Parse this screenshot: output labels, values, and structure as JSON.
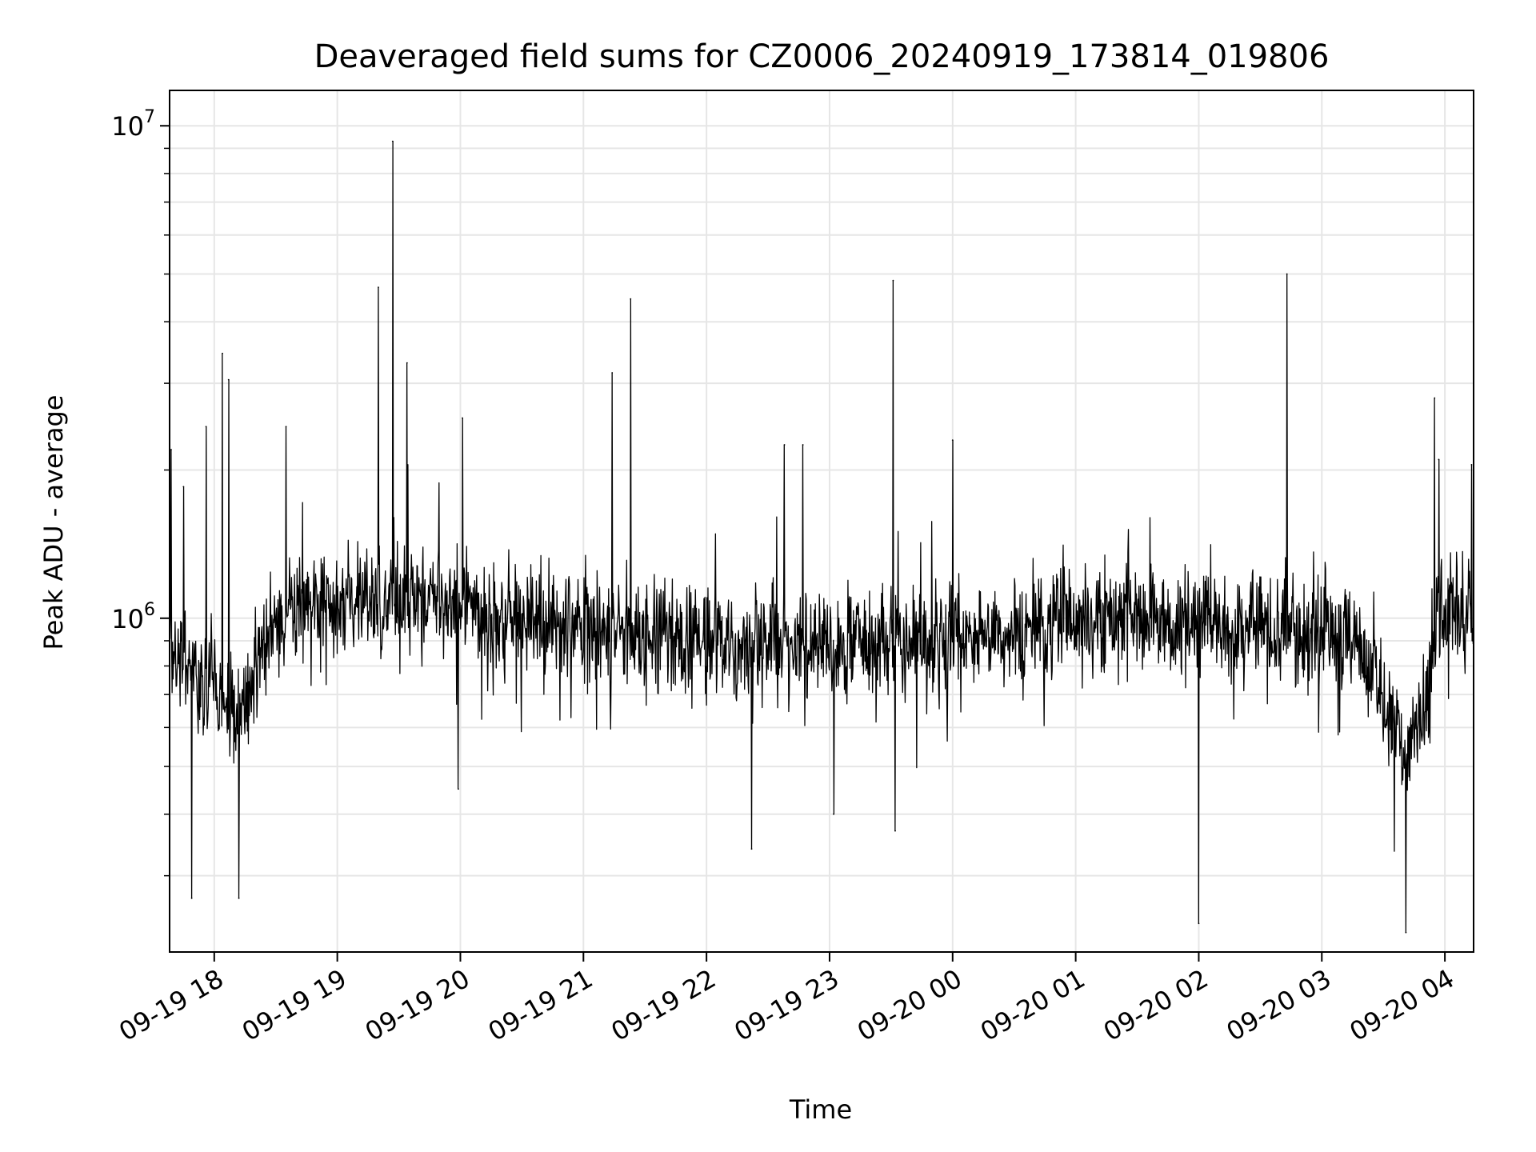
{
  "chart_data": {
    "type": "line",
    "title": "Deaveraged field sums for CZ0006_20240919_173814_019806",
    "xlabel": "Time",
    "ylabel": "Peak ADU - average",
    "yscale": "log",
    "ylim": [
      210000,
      11800000
    ],
    "xlim": [
      "2024-09-19 17:38:14",
      "2024-09-20 04:14:00"
    ],
    "grid": true,
    "line_color": "#000000",
    "grid_color": "#e6e6e6",
    "x_ticks": [
      {
        "t": "2024-09-19 18:00",
        "label": "09-19 18"
      },
      {
        "t": "2024-09-19 19:00",
        "label": "09-19 19"
      },
      {
        "t": "2024-09-19 20:00",
        "label": "09-19 20"
      },
      {
        "t": "2024-09-19 21:00",
        "label": "09-19 21"
      },
      {
        "t": "2024-09-19 22:00",
        "label": "09-19 22"
      },
      {
        "t": "2024-09-19 23:00",
        "label": "09-19 23"
      },
      {
        "t": "2024-09-20 00:00",
        "label": "09-20 00"
      },
      {
        "t": "2024-09-20 01:00",
        "label": "09-20 01"
      },
      {
        "t": "2024-09-20 02:00",
        "label": "09-20 02"
      },
      {
        "t": "2024-09-20 03:00",
        "label": "09-20 03"
      },
      {
        "t": "2024-09-20 04:00",
        "label": "09-20 04"
      }
    ],
    "y_major_ticks": [
      {
        "v": 1000000,
        "base": "10",
        "exp": "6"
      },
      {
        "v": 10000000,
        "base": "10",
        "exp": "7"
      }
    ],
    "y_minor_ticks": [
      300000,
      400000,
      500000,
      600000,
      700000,
      800000,
      900000,
      2000000,
      3000000,
      4000000,
      5000000,
      6000000,
      7000000,
      8000000,
      9000000
    ],
    "baseline": [
      {
        "t": "2024-09-19 17:38",
        "v": 880000
      },
      {
        "t": "2024-09-19 17:50",
        "v": 800000
      },
      {
        "t": "2024-09-19 18:00",
        "v": 700000
      },
      {
        "t": "2024-09-19 18:10",
        "v": 640000
      },
      {
        "t": "2024-09-19 18:18",
        "v": 700000
      },
      {
        "t": "2024-09-19 18:25",
        "v": 950000
      },
      {
        "t": "2024-09-19 18:40",
        "v": 1050000
      },
      {
        "t": "2024-09-19 19:00",
        "v": 1080000
      },
      {
        "t": "2024-09-19 19:30",
        "v": 1100000
      },
      {
        "t": "2024-09-19 20:00",
        "v": 1050000
      },
      {
        "t": "2024-09-19 20:30",
        "v": 1000000
      },
      {
        "t": "2024-09-19 21:00",
        "v": 950000
      },
      {
        "t": "2024-09-19 21:30",
        "v": 920000
      },
      {
        "t": "2024-09-19 22:00",
        "v": 900000
      },
      {
        "t": "2024-09-19 22:30",
        "v": 880000
      },
      {
        "t": "2024-09-19 23:00",
        "v": 880000
      },
      {
        "t": "2024-09-19 23:30",
        "v": 900000
      },
      {
        "t": "2024-09-20 00:00",
        "v": 920000
      },
      {
        "t": "2024-09-20 00:30",
        "v": 950000
      },
      {
        "t": "2024-09-20 01:00",
        "v": 980000
      },
      {
        "t": "2024-09-20 01:30",
        "v": 1000000
      },
      {
        "t": "2024-09-20 02:00",
        "v": 980000
      },
      {
        "t": "2024-09-20 02:30",
        "v": 950000
      },
      {
        "t": "2024-09-20 03:00",
        "v": 930000
      },
      {
        "t": "2024-09-20 03:15",
        "v": 900000
      },
      {
        "t": "2024-09-20 03:25",
        "v": 780000
      },
      {
        "t": "2024-09-20 03:35",
        "v": 600000
      },
      {
        "t": "2024-09-20 03:45",
        "v": 560000
      },
      {
        "t": "2024-09-20 03:52",
        "v": 700000
      },
      {
        "t": "2024-09-20 03:56",
        "v": 1050000
      },
      {
        "t": "2024-09-20 04:14",
        "v": 1000000
      }
    ],
    "spikes": [
      {
        "t": "2024-09-19 17:39",
        "v": 2200000
      },
      {
        "t": "2024-09-19 17:45",
        "v": 1850000
      },
      {
        "t": "2024-09-19 17:49",
        "v": 270000
      },
      {
        "t": "2024-09-19 17:56",
        "v": 2450000
      },
      {
        "t": "2024-09-19 18:04",
        "v": 3450000
      },
      {
        "t": "2024-09-19 18:07",
        "v": 3050000
      },
      {
        "t": "2024-09-19 18:12",
        "v": 270000
      },
      {
        "t": "2024-09-19 18:35",
        "v": 2450000
      },
      {
        "t": "2024-09-19 19:20",
        "v": 4700000
      },
      {
        "t": "2024-09-19 19:27",
        "v": 9300000
      },
      {
        "t": "2024-09-19 19:34",
        "v": 3300000
      },
      {
        "t": "2024-09-19 19:59",
        "v": 450000
      },
      {
        "t": "2024-09-19 20:01",
        "v": 2550000
      },
      {
        "t": "2024-09-19 21:14",
        "v": 3150000
      },
      {
        "t": "2024-09-19 21:23",
        "v": 4450000
      },
      {
        "t": "2024-09-19 22:22",
        "v": 340000
      },
      {
        "t": "2024-09-19 22:38",
        "v": 2250000
      },
      {
        "t": "2024-09-19 22:47",
        "v": 2250000
      },
      {
        "t": "2024-09-19 23:02",
        "v": 400000
      },
      {
        "t": "2024-09-19 23:31",
        "v": 4850000
      },
      {
        "t": "2024-09-19 23:32",
        "v": 370000
      },
      {
        "t": "2024-09-20 00:00",
        "v": 2300000
      },
      {
        "t": "2024-09-20 02:00",
        "v": 240000
      },
      {
        "t": "2024-09-20 02:43",
        "v": 5000000
      },
      {
        "t": "2024-09-20 03:41",
        "v": 230000
      },
      {
        "t": "2024-09-20 03:55",
        "v": 2800000
      },
      {
        "t": "2024-09-20 03:57",
        "v": 2100000
      },
      {
        "t": "2024-09-20 04:13",
        "v": 2050000
      }
    ]
  }
}
